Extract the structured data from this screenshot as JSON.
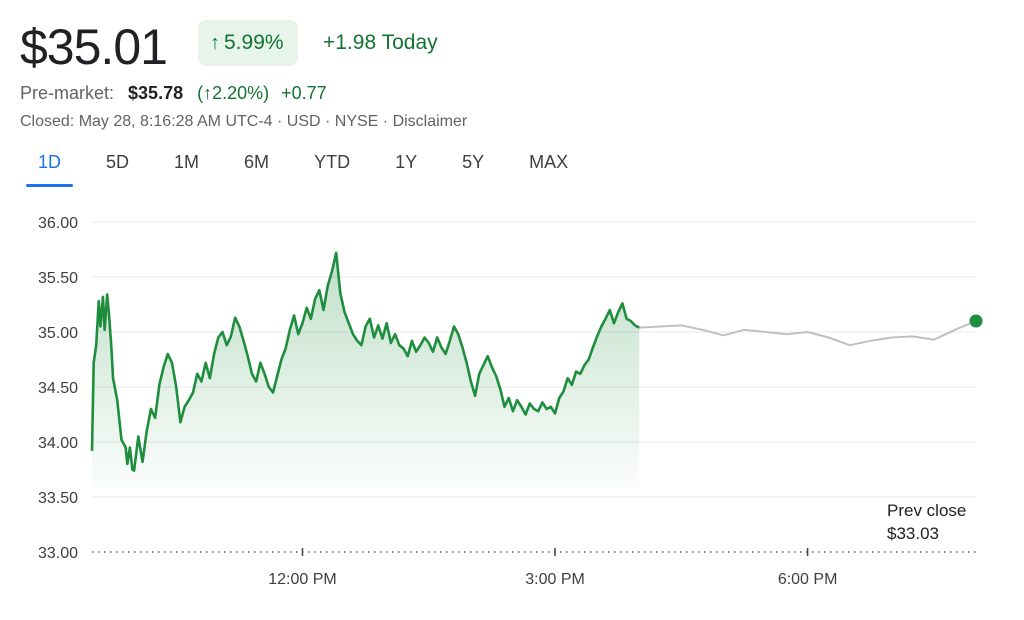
{
  "quote": {
    "price": "$35.01",
    "change_pct": "5.99%",
    "change_today": "+1.98 Today",
    "premarket_label": "Pre-market:",
    "premarket_price": "$35.78",
    "premarket_pct": "(↑2.20%)",
    "premarket_change": "+0.77",
    "status_line": "Closed: May 28, 8:16:28 AM UTC-4 · USD · NYSE · Disclaimer"
  },
  "ranges": [
    "1D",
    "5D",
    "1M",
    "6M",
    "YTD",
    "1Y",
    "5Y",
    "MAX"
  ],
  "active_range": "1D",
  "colors": {
    "up": "#1e8e3e",
    "extended": "#bdc1c6",
    "accent": "#1a73e8",
    "up_bg": "#e6f4ea"
  },
  "chart_data": {
    "type": "line",
    "ylim": [
      33.0,
      36.0
    ],
    "yticks": [
      "36.00",
      "35.50",
      "35.00",
      "34.50",
      "34.00",
      "33.50",
      "33.00"
    ],
    "xlim": [
      9.5,
      20.0
    ],
    "xtick_values": [
      12,
      15,
      18
    ],
    "xticks": [
      "12:00 PM",
      "3:00 PM",
      "6:00 PM"
    ],
    "prev_close": {
      "label": "Prev close",
      "value_text": "$33.03",
      "value": 33.03
    },
    "grid": true,
    "series": [
      {
        "session": "regular",
        "x": [
          9.5,
          9.52,
          9.55,
          9.58,
          9.6,
          9.63,
          9.65,
          9.68,
          9.7,
          9.73,
          9.75,
          9.8,
          9.85,
          9.9,
          9.92,
          9.95,
          9.98,
          10.0,
          10.05,
          10.1,
          10.15,
          10.2,
          10.25,
          10.3,
          10.35,
          10.4,
          10.45,
          10.5,
          10.55,
          10.6,
          10.65,
          10.7,
          10.75,
          10.8,
          10.85,
          10.9,
          10.95,
          11.0,
          11.05,
          11.1,
          11.15,
          11.2,
          11.25,
          11.3,
          11.35,
          11.4,
          11.45,
          11.5,
          11.55,
          11.6,
          11.65,
          11.7,
          11.75,
          11.8,
          11.85,
          11.9,
          11.95,
          12.0,
          12.05,
          12.1,
          12.15,
          12.2,
          12.25,
          12.3,
          12.35,
          12.4,
          12.45,
          12.5,
          12.55,
          12.6,
          12.65,
          12.7,
          12.75,
          12.8,
          12.85,
          12.9,
          12.95,
          13.0,
          13.05,
          13.1,
          13.15,
          13.2,
          13.25,
          13.3,
          13.35,
          13.4,
          13.45,
          13.5,
          13.55,
          13.6,
          13.65,
          13.7,
          13.75,
          13.8,
          13.85,
          13.9,
          13.95,
          14.0,
          14.05,
          14.1,
          14.15,
          14.2,
          14.25,
          14.3,
          14.35,
          14.4,
          14.45,
          14.5,
          14.55,
          14.6,
          14.65,
          14.7,
          14.75,
          14.8,
          14.85,
          14.9,
          14.95,
          15.0,
          15.05,
          15.1,
          15.15,
          15.2,
          15.25,
          15.3,
          15.35,
          15.4,
          15.45,
          15.5,
          15.55,
          15.6,
          15.65,
          15.7,
          15.75,
          15.8,
          15.85,
          15.9,
          15.95,
          16.0
        ],
        "values": [
          33.92,
          34.72,
          34.88,
          35.28,
          35.05,
          35.32,
          35.02,
          35.34,
          35.18,
          34.86,
          34.58,
          34.38,
          34.02,
          33.95,
          33.8,
          33.95,
          33.75,
          33.74,
          34.05,
          33.82,
          34.1,
          34.3,
          34.22,
          34.52,
          34.68,
          34.8,
          34.72,
          34.5,
          34.18,
          34.32,
          34.38,
          34.45,
          34.62,
          34.55,
          34.72,
          34.58,
          34.8,
          34.95,
          35.0,
          34.88,
          34.96,
          35.13,
          35.05,
          34.92,
          34.78,
          34.62,
          34.55,
          34.72,
          34.62,
          34.5,
          34.45,
          34.6,
          34.75,
          34.85,
          35.02,
          35.15,
          34.98,
          35.08,
          35.22,
          35.12,
          35.3,
          35.38,
          35.2,
          35.42,
          35.55,
          35.72,
          35.35,
          35.18,
          35.08,
          34.98,
          34.92,
          34.88,
          35.05,
          35.12,
          34.95,
          35.06,
          34.94,
          35.08,
          34.9,
          34.98,
          34.88,
          34.85,
          34.78,
          34.92,
          34.82,
          34.88,
          34.95,
          34.9,
          34.82,
          34.95,
          34.86,
          34.8,
          34.92,
          35.05,
          34.98,
          34.86,
          34.72,
          34.55,
          34.42,
          34.62,
          34.7,
          34.78,
          34.68,
          34.6,
          34.48,
          34.32,
          34.4,
          34.28,
          34.38,
          34.32,
          34.25,
          34.35,
          34.3,
          34.28,
          34.36,
          34.3,
          34.32,
          34.26,
          34.4,
          34.46,
          34.58,
          34.52,
          34.64,
          34.62,
          34.7,
          34.75,
          34.86,
          34.96,
          35.05,
          35.12,
          35.2,
          35.08,
          35.18,
          35.26,
          35.12,
          35.1,
          35.06,
          35.04
        ]
      },
      {
        "session": "extended",
        "x": [
          16.0,
          16.25,
          16.5,
          16.75,
          17.0,
          17.25,
          17.5,
          17.75,
          18.0,
          18.25,
          18.5,
          18.75,
          19.0,
          19.25,
          19.5,
          19.75,
          20.0
        ],
        "values": [
          35.04,
          35.05,
          35.06,
          35.02,
          34.97,
          35.02,
          35.0,
          34.98,
          35.0,
          34.95,
          34.88,
          34.92,
          34.95,
          34.96,
          34.93,
          35.02,
          35.1
        ]
      }
    ]
  }
}
